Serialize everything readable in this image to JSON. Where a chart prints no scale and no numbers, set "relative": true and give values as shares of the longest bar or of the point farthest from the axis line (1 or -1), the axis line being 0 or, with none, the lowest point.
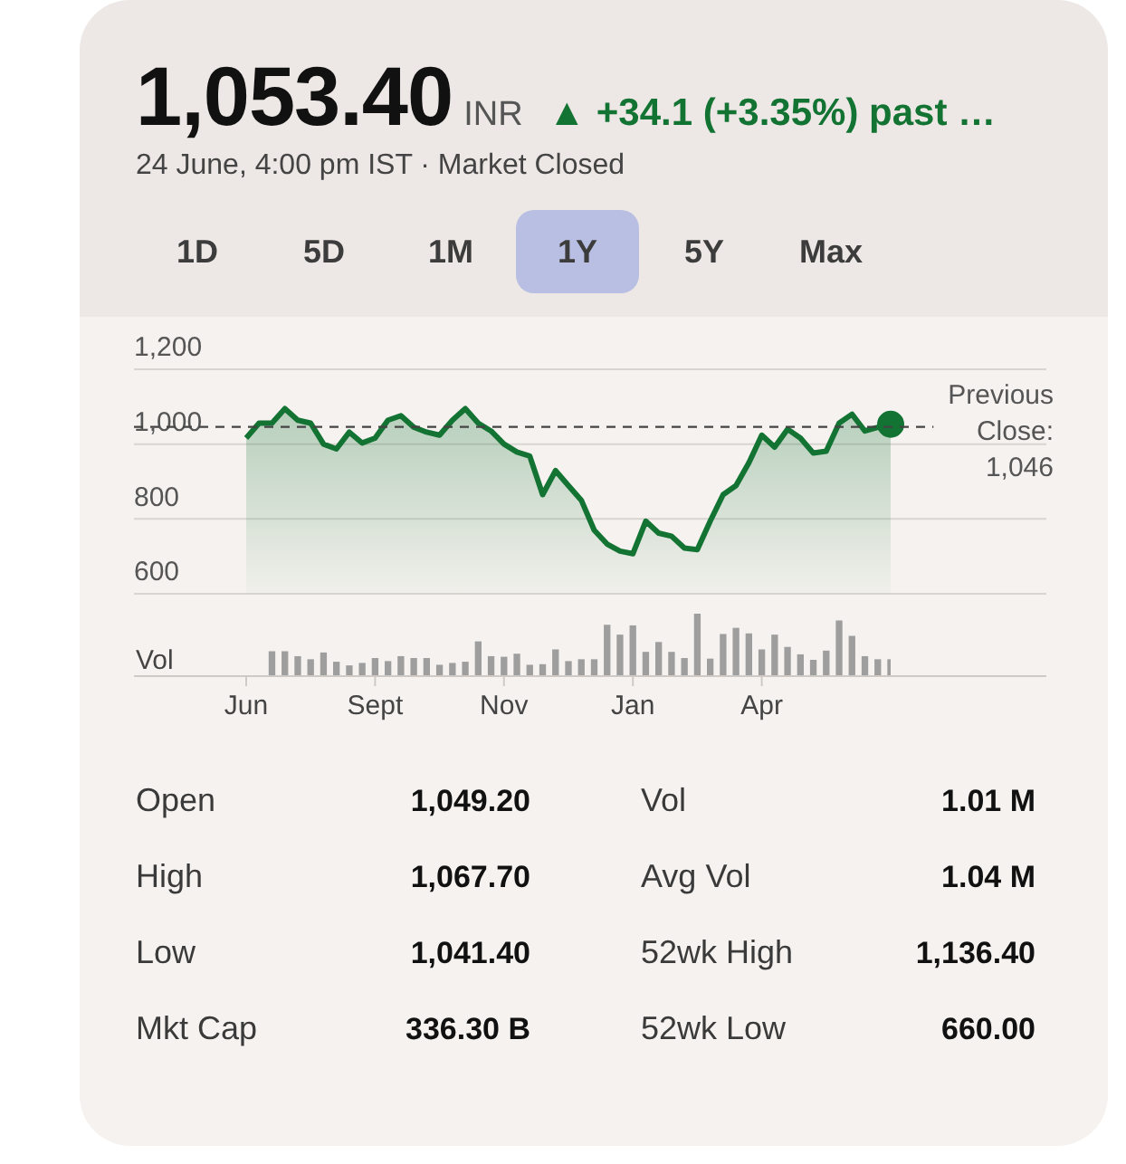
{
  "chart_data": [
    {
      "type": "other",
      "title": "1,053.40",
      "subtitle": "24 June, 4:00 pm IST · Market Closed",
      "annotations": [
        "INR",
        "▲ +34.1 (+3.35%) past …"
      ],
      "categories": [
        "1D",
        "5D",
        "1M",
        "1Y",
        "5Y",
        "Max"
      ]
    },
    {
      "type": "area",
      "ylim": [
        600,
        1200
      ],
      "yticks": [
        {
          "value": 600,
          "label": "600"
        },
        {
          "value": 800,
          "label": "800"
        },
        {
          "value": 1000,
          "label": "1,000"
        },
        {
          "value": 1200,
          "label": "1,200"
        }
      ],
      "grid": "y",
      "tick_labels": "y",
      "series": [
        {
          "type": "area",
          "color": "#137333",
          "values": [
            1016,
            1056,
            1056,
            1095,
            1064,
            1056,
            1000,
            987,
            1032,
            1003,
            1016,
            1064,
            1076,
            1045,
            1032,
            1024,
            1064,
            1095,
            1056,
            1035,
            1000,
            979,
            968,
            865,
            929,
            889,
            850,
            770,
            733,
            714,
            707,
            794,
            762,
            754,
            722,
            718,
            794,
            865,
            889,
            950,
            1024,
            992,
            1040,
            1016,
            976,
            981,
            1056,
            1080,
            1035,
            1045,
            1053
          ]
        },
        {
          "type": "scatter",
          "color": "#137333",
          "values": [
            null,
            null,
            null,
            null,
            null,
            null,
            null,
            null,
            null,
            null,
            null,
            null,
            null,
            null,
            null,
            null,
            null,
            null,
            null,
            null,
            null,
            null,
            null,
            null,
            null,
            null,
            null,
            null,
            null,
            null,
            null,
            null,
            null,
            null,
            null,
            null,
            null,
            null,
            null,
            null,
            null,
            null,
            null,
            null,
            null,
            null,
            null,
            null,
            null,
            null,
            1053
          ]
        }
      ],
      "ref_lines": [
        {
          "axis": "y",
          "value": 1046,
          "label": "Previous Close: 1,046",
          "line_style": "dashed",
          "color": "#444444"
        }
      ]
    },
    {
      "type": "bar",
      "relative": true,
      "ylabel": "Vol",
      "color": "#9e9e9e",
      "categories": [
        "Jun",
        null,
        null,
        null,
        null,
        null,
        null,
        null,
        null,
        null,
        "Sept",
        null,
        null,
        null,
        null,
        null,
        null,
        null,
        null,
        null,
        "Nov",
        null,
        null,
        null,
        null,
        null,
        null,
        null,
        null,
        null,
        "Jan",
        null,
        null,
        null,
        null,
        null,
        null,
        null,
        null,
        null,
        "Apr",
        null,
        null,
        null,
        null,
        null,
        null,
        null,
        null,
        null,
        null
      ],
      "values": [
        null,
        null,
        0.38,
        0.38,
        0.3,
        0.25,
        0.36,
        0.21,
        0.15,
        0.19,
        0.27,
        0.22,
        0.3,
        0.27,
        0.27,
        0.16,
        0.19,
        0.21,
        0.54,
        0.3,
        0.29,
        0.34,
        0.16,
        0.17,
        0.41,
        0.22,
        0.25,
        0.25,
        0.81,
        0.65,
        0.8,
        0.37,
        0.53,
        0.37,
        0.27,
        1,
        0.26,
        0.66,
        0.76,
        0.67,
        0.41,
        0.65,
        0.45,
        0.33,
        0.24,
        0.39,
        0.88,
        0.63,
        0.3,
        0.25,
        0.25
      ]
    },
    {
      "type": "other",
      "annotations": [
        "Open",
        "1,049.20",
        "Vol",
        "1.01 M",
        "High",
        "1,067.70",
        "Avg Vol",
        "1.04 M",
        "Low",
        "1,041.40",
        "52wk High",
        "1,136.40",
        "Mkt Cap",
        "336.30 B",
        "52wk Low",
        "660.00"
      ]
    }
  ]
}
